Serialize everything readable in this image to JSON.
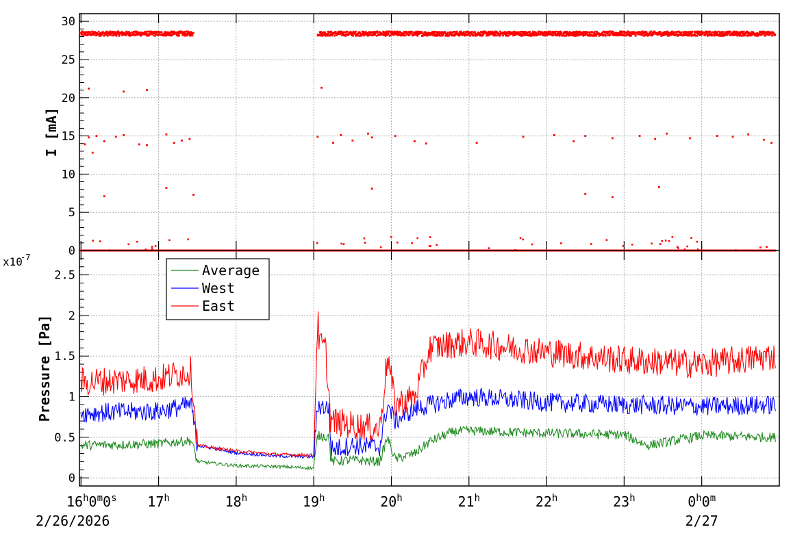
{
  "chart_data": [
    {
      "type": "scatter",
      "ylabel": "I [mA]",
      "ylim": [
        0,
        31
      ],
      "yticks": [
        "0",
        "5",
        "10",
        "15",
        "20",
        "25",
        "30"
      ],
      "grid": true,
      "colors": {
        "series": "#ff0000"
      },
      "series": [
        {
          "values_description_hour": [
            16.0,
            17.45
          ],
          "segments": [
            {
              "x_range_h": [
                16.0,
                17.45
              ],
              "y_main": 28.4
            },
            {
              "x_range_h": [
                19.05,
                24.95
              ],
              "y_main": 28.4
            },
            {
              "x_range_h": [
                16.0,
                24.95
              ],
              "y_main": 0.0
            }
          ],
          "x": [
            16.05,
            16.1,
            16.15,
            16.2,
            16.3,
            16.45,
            16.55,
            16.75,
            16.85,
            17.1,
            17.2,
            17.3,
            17.4,
            19.05,
            19.1,
            19.25,
            19.35,
            19.5,
            19.7,
            19.75,
            20.05,
            20.3,
            20.45,
            21.1,
            21.7,
            22.1,
            22.35,
            22.5,
            22.85,
            23.2,
            23.4,
            23.55,
            23.85,
            24.2,
            24.4,
            24.6,
            24.8,
            24.9,
            16.1,
            16.3,
            16.55,
            16.85,
            17.1,
            17.45,
            19.75,
            22.5,
            22.85,
            23.45
          ],
          "y": [
            13.9,
            14.8,
            12.8,
            15.0,
            14.3,
            14.9,
            15.1,
            13.9,
            13.8,
            15.2,
            14.1,
            14.4,
            14.6,
            14.9,
            21.3,
            14.1,
            15.1,
            14.4,
            15.3,
            14.8,
            15.0,
            14.3,
            14.0,
            14.1,
            14.9,
            15.1,
            14.3,
            15.0,
            14.7,
            15.0,
            14.6,
            15.3,
            14.7,
            15.0,
            14.9,
            15.2,
            14.5,
            14.1,
            21.2,
            7.1,
            20.8,
            21.0,
            8.2,
            7.3,
            8.1,
            7.4,
            7.0,
            8.3
          ]
        }
      ]
    },
    {
      "type": "line",
      "ylabel": "Pressure [Pa]",
      "exponent_label": "x10",
      "exponent_value": "-7",
      "ylim": [
        -0.1,
        2.8
      ],
      "yticks": [
        "0",
        "0.5",
        "1",
        "1.5",
        "2",
        "2.5"
      ],
      "grid": true,
      "legend": {
        "placement": "top-left"
      },
      "series": [
        {
          "name": "Average",
          "color": "#228b22",
          "x": [
            16.0,
            17.0,
            17.42,
            17.5,
            18.0,
            18.5,
            19.0,
            19.05,
            19.1,
            19.2,
            19.22,
            19.5,
            19.85,
            19.95,
            20.05,
            20.3,
            20.5,
            20.8,
            21.0,
            22.0,
            23.0,
            23.3,
            24.0,
            24.95
          ],
          "y": [
            0.4,
            0.42,
            0.46,
            0.2,
            0.15,
            0.14,
            0.12,
            0.52,
            0.52,
            0.5,
            0.2,
            0.22,
            0.2,
            0.5,
            0.23,
            0.3,
            0.45,
            0.57,
            0.58,
            0.55,
            0.53,
            0.4,
            0.52,
            0.5
          ]
        },
        {
          "name": "West",
          "color": "#0000ff",
          "x": [
            16.0,
            17.0,
            17.42,
            17.5,
            18.0,
            18.5,
            19.0,
            19.05,
            19.1,
            19.2,
            19.22,
            19.5,
            19.85,
            19.95,
            20.05,
            20.3,
            20.5,
            20.8,
            21.0,
            22.0,
            23.0,
            24.0,
            24.95
          ],
          "y": [
            0.8,
            0.82,
            0.9,
            0.4,
            0.31,
            0.27,
            0.26,
            0.9,
            0.88,
            0.85,
            0.35,
            0.4,
            0.38,
            0.9,
            0.7,
            0.85,
            0.9,
            0.97,
            1.0,
            0.93,
            0.9,
            0.88,
            0.9
          ]
        },
        {
          "name": "East",
          "color": "#ff0000",
          "x": [
            16.0,
            17.0,
            17.42,
            17.5,
            18.0,
            18.5,
            19.0,
            19.05,
            19.07,
            19.15,
            19.22,
            19.5,
            19.85,
            19.95,
            20.05,
            20.3,
            20.5,
            20.8,
            21.0,
            22.0,
            23.0,
            24.0,
            24.95
          ],
          "y": [
            1.18,
            1.22,
            1.32,
            0.4,
            0.33,
            0.29,
            0.28,
            2.0,
            1.65,
            1.6,
            0.7,
            0.65,
            0.6,
            1.5,
            0.9,
            1.0,
            1.6,
            1.65,
            1.67,
            1.55,
            1.45,
            1.4,
            1.5
          ]
        }
      ]
    }
  ],
  "x_axis": {
    "hours": [
      16,
      17,
      18,
      19,
      20,
      21,
      22,
      23,
      24
    ],
    "tick_labels": [
      {
        "main": "16",
        "sup": "h",
        "main2": "0",
        "sup2": "m",
        "main3": "0",
        "sup3": "s"
      },
      {
        "main": "17",
        "sup": "h"
      },
      {
        "main": "18",
        "sup": "h"
      },
      {
        "main": "19",
        "sup": "h"
      },
      {
        "main": "20",
        "sup": "h"
      },
      {
        "main": "21",
        "sup": "h"
      },
      {
        "main": "22",
        "sup": "h"
      },
      {
        "main": "23",
        "sup": "h"
      },
      {
        "main": "0",
        "sup": "h",
        "main2": "0",
        "sup2": "m"
      }
    ],
    "date_labels": [
      "2/26/2026",
      "2/27"
    ],
    "range_h": [
      15.98,
      25.0
    ]
  }
}
